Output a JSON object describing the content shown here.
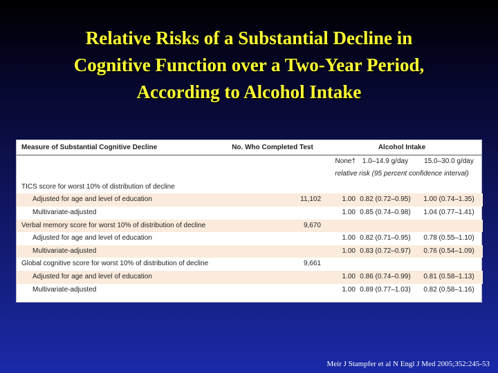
{
  "title": {
    "line1": "Relative Risks of a Substantial Decline in",
    "line2": "Cognitive Function over a Two-Year Period,",
    "line3": "According to Alcohol Intake"
  },
  "table": {
    "headers": {
      "measure": "Measure of Substantial Cognitive Decline",
      "completed": "No. Who Completed Test",
      "alcohol": "Alcohol Intake"
    },
    "subheaders": [
      "None†",
      "1.0–14.9 g/day",
      "15.0–30.0 g/day"
    ],
    "unit_row": "relative risk (95 percent confidence interval)",
    "rows": [
      {
        "label": "TICS score for worst 10% of distribution of decline",
        "n": "",
        "none": "",
        "low": "",
        "high": "",
        "group": true,
        "shaded": false
      },
      {
        "label": "Adjusted for age and level of education",
        "n": "11,102",
        "none": "1.00",
        "low": "0.82 (0.72–0.95)",
        "high": "1.00 (0.74–1.35)",
        "group": false,
        "shaded": true
      },
      {
        "label": "Multivariate-adjusted",
        "n": "",
        "none": "1.00",
        "low": "0.85 (0.74–0.98)",
        "high": "1.04 (0.77–1.41)",
        "group": false,
        "shaded": false
      },
      {
        "label": "Verbal memory score for worst 10% of distribution of decline",
        "n": "9,670",
        "none": "",
        "low": "",
        "high": "",
        "group": true,
        "shaded": true
      },
      {
        "label": "Adjusted for age and level of education",
        "n": "",
        "none": "1.00",
        "low": "0.82 (0.71–0.95)",
        "high": "0.78 (0.55–1.10)",
        "group": false,
        "shaded": false
      },
      {
        "label": "Multivariate-adjusted",
        "n": "",
        "none": "1.00",
        "low": "0.83 (0.72–0.97)",
        "high": "0.76 (0.54–1.09)",
        "group": false,
        "shaded": true
      },
      {
        "label": "Global cognitive score for worst 10% of distribution of decline",
        "n": "9,661",
        "none": "",
        "low": "",
        "high": "",
        "group": true,
        "shaded": false
      },
      {
        "label": "Adjusted for age and level of education",
        "n": "",
        "none": "1.00",
        "low": "0.86 (0.74–0.99)",
        "high": "0.81 (0.58–1.13)",
        "group": false,
        "shaded": true
      },
      {
        "label": "Multivariate-adjusted",
        "n": "",
        "none": "1.00",
        "low": "0.89 (0.77–1.03)",
        "high": "0.82 (0.58–1.16)",
        "group": false,
        "shaded": false
      }
    ]
  },
  "footer": "Meir J Stampfer et al N Engl J Med 2005;352:245-53"
}
